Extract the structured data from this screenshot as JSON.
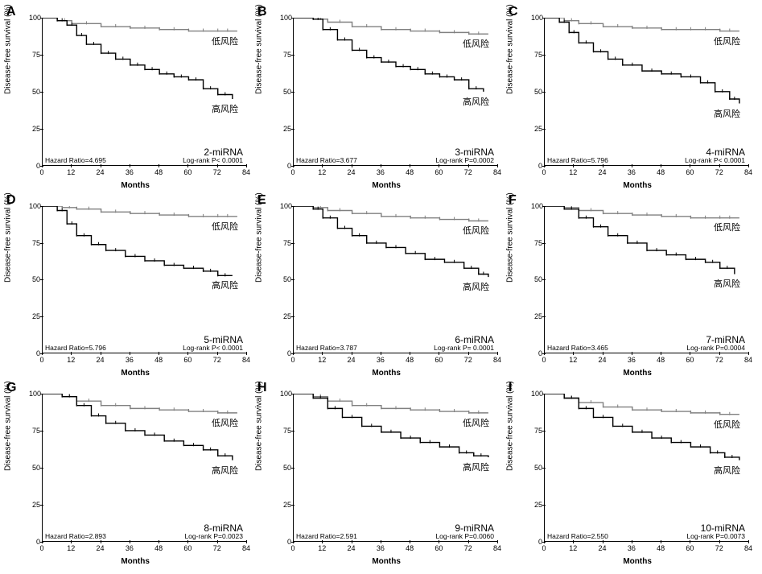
{
  "figure": {
    "grid": {
      "rows": 3,
      "cols": 3
    },
    "background": "#ffffff",
    "yaxis": {
      "label": "Disease-free survival (%)",
      "min": 0,
      "max": 100,
      "ticks": [
        0,
        25,
        50,
        75,
        100
      ]
    },
    "xaxis": {
      "label": "Months",
      "min": 0,
      "max": 84,
      "ticks": [
        0,
        12,
        24,
        36,
        48,
        60,
        72,
        84
      ]
    },
    "line_color": "#000000",
    "low_risk_color": "#808080",
    "high_risk_color": "#000000",
    "line_width": 1.4,
    "censor_marker": "|",
    "annot_low": "低风险",
    "annot_high": "高风险",
    "label_fontsize": 10,
    "tick_fontsize": 9
  },
  "panels": [
    {
      "letter": "A",
      "mirna": "2-miRNA",
      "hazard": "Hazard Ratio=4.695",
      "logrank": "Log-rank P< 0.0001",
      "low": [
        [
          0,
          100
        ],
        [
          6,
          98
        ],
        [
          12,
          96
        ],
        [
          24,
          94
        ],
        [
          36,
          93
        ],
        [
          48,
          92
        ],
        [
          60,
          91
        ],
        [
          72,
          91
        ],
        [
          80,
          91
        ]
      ],
      "high": [
        [
          0,
          100
        ],
        [
          6,
          98
        ],
        [
          10,
          95
        ],
        [
          14,
          88
        ],
        [
          18,
          82
        ],
        [
          24,
          76
        ],
        [
          30,
          72
        ],
        [
          36,
          68
        ],
        [
          42,
          65
        ],
        [
          48,
          62
        ],
        [
          54,
          60
        ],
        [
          60,
          58
        ],
        [
          66,
          52
        ],
        [
          72,
          48
        ],
        [
          78,
          45
        ]
      ]
    },
    {
      "letter": "B",
      "mirna": "3-miRNA",
      "hazard": "Hazard Ratio=3.677",
      "logrank": "Log-rank P=0.0002",
      "low": [
        [
          0,
          100
        ],
        [
          8,
          99
        ],
        [
          14,
          97
        ],
        [
          24,
          94
        ],
        [
          36,
          92
        ],
        [
          48,
          91
        ],
        [
          60,
          90
        ],
        [
          72,
          89
        ],
        [
          80,
          89
        ]
      ],
      "high": [
        [
          0,
          100
        ],
        [
          8,
          99
        ],
        [
          12,
          92
        ],
        [
          18,
          85
        ],
        [
          24,
          78
        ],
        [
          30,
          73
        ],
        [
          36,
          70
        ],
        [
          42,
          67
        ],
        [
          48,
          65
        ],
        [
          54,
          62
        ],
        [
          60,
          60
        ],
        [
          66,
          58
        ],
        [
          72,
          52
        ],
        [
          78,
          50
        ]
      ]
    },
    {
      "letter": "C",
      "mirna": "4-miRNA",
      "hazard": "Hazard Ratio=5.796",
      "logrank": "Log-rank P< 0.0001",
      "low": [
        [
          0,
          100
        ],
        [
          8,
          98
        ],
        [
          14,
          96
        ],
        [
          24,
          94
        ],
        [
          36,
          93
        ],
        [
          48,
          92
        ],
        [
          60,
          92
        ],
        [
          72,
          91
        ],
        [
          80,
          91
        ]
      ],
      "high": [
        [
          0,
          100
        ],
        [
          6,
          97
        ],
        [
          10,
          90
        ],
        [
          14,
          83
        ],
        [
          20,
          77
        ],
        [
          26,
          72
        ],
        [
          32,
          68
        ],
        [
          40,
          64
        ],
        [
          48,
          62
        ],
        [
          56,
          60
        ],
        [
          64,
          56
        ],
        [
          70,
          50
        ],
        [
          76,
          45
        ],
        [
          80,
          42
        ]
      ]
    },
    {
      "letter": "D",
      "mirna": "5-miRNA",
      "hazard": "Hazard Ratio=5.796",
      "logrank": "Log-rank P< 0.0001",
      "low": [
        [
          0,
          100
        ],
        [
          8,
          99
        ],
        [
          14,
          98
        ],
        [
          24,
          96
        ],
        [
          36,
          95
        ],
        [
          48,
          94
        ],
        [
          60,
          93
        ],
        [
          72,
          93
        ],
        [
          80,
          93
        ]
      ],
      "high": [
        [
          0,
          100
        ],
        [
          6,
          97
        ],
        [
          10,
          88
        ],
        [
          14,
          80
        ],
        [
          20,
          74
        ],
        [
          26,
          70
        ],
        [
          34,
          66
        ],
        [
          42,
          63
        ],
        [
          50,
          60
        ],
        [
          58,
          58
        ],
        [
          66,
          56
        ],
        [
          72,
          53
        ],
        [
          78,
          53
        ]
      ]
    },
    {
      "letter": "E",
      "mirna": "6-miRNA",
      "hazard": "Hazard Ratio=3.787",
      "logrank": "Log-rank P= 0.0001",
      "low": [
        [
          0,
          100
        ],
        [
          8,
          99
        ],
        [
          14,
          97
        ],
        [
          24,
          95
        ],
        [
          36,
          93
        ],
        [
          48,
          92
        ],
        [
          60,
          91
        ],
        [
          72,
          90
        ],
        [
          80,
          90
        ]
      ],
      "high": [
        [
          0,
          100
        ],
        [
          8,
          98
        ],
        [
          12,
          92
        ],
        [
          18,
          85
        ],
        [
          24,
          80
        ],
        [
          30,
          75
        ],
        [
          38,
          72
        ],
        [
          46,
          68
        ],
        [
          54,
          64
        ],
        [
          62,
          62
        ],
        [
          70,
          58
        ],
        [
          76,
          54
        ],
        [
          80,
          52
        ]
      ]
    },
    {
      "letter": "F",
      "mirna": "7-miRNA",
      "hazard": "Hazard Ratio=3.465",
      "logrank": "Log-rank P=0.0004",
      "low": [
        [
          0,
          100
        ],
        [
          8,
          99
        ],
        [
          14,
          97
        ],
        [
          24,
          95
        ],
        [
          36,
          94
        ],
        [
          48,
          93
        ],
        [
          60,
          92
        ],
        [
          72,
          92
        ],
        [
          80,
          92
        ]
      ],
      "high": [
        [
          0,
          100
        ],
        [
          8,
          98
        ],
        [
          14,
          92
        ],
        [
          20,
          86
        ],
        [
          26,
          80
        ],
        [
          34,
          75
        ],
        [
          42,
          70
        ],
        [
          50,
          67
        ],
        [
          58,
          64
        ],
        [
          66,
          62
        ],
        [
          72,
          58
        ],
        [
          78,
          54
        ]
      ]
    },
    {
      "letter": "G",
      "mirna": "8-miRNA",
      "hazard": "Hazard Ratio=2.893",
      "logrank": "Log-rank P=0.0023",
      "low": [
        [
          0,
          100
        ],
        [
          8,
          98
        ],
        [
          14,
          95
        ],
        [
          24,
          92
        ],
        [
          36,
          90
        ],
        [
          48,
          89
        ],
        [
          60,
          88
        ],
        [
          72,
          87
        ],
        [
          80,
          87
        ]
      ],
      "high": [
        [
          0,
          100
        ],
        [
          8,
          98
        ],
        [
          14,
          92
        ],
        [
          20,
          85
        ],
        [
          26,
          80
        ],
        [
          34,
          75
        ],
        [
          42,
          72
        ],
        [
          50,
          68
        ],
        [
          58,
          65
        ],
        [
          66,
          62
        ],
        [
          72,
          58
        ],
        [
          78,
          55
        ]
      ]
    },
    {
      "letter": "H",
      "mirna": "9-miRNA",
      "hazard": "Hazard Ratio=2.591",
      "logrank": "Log-rank P=0.0060",
      "low": [
        [
          0,
          100
        ],
        [
          8,
          98
        ],
        [
          14,
          95
        ],
        [
          24,
          92
        ],
        [
          36,
          90
        ],
        [
          48,
          89
        ],
        [
          60,
          88
        ],
        [
          72,
          87
        ],
        [
          80,
          87
        ]
      ],
      "high": [
        [
          0,
          100
        ],
        [
          8,
          97
        ],
        [
          14,
          90
        ],
        [
          20,
          84
        ],
        [
          28,
          78
        ],
        [
          36,
          74
        ],
        [
          44,
          70
        ],
        [
          52,
          67
        ],
        [
          60,
          64
        ],
        [
          68,
          60
        ],
        [
          74,
          58
        ],
        [
          80,
          57
        ]
      ]
    },
    {
      "letter": "I",
      "mirna": "10-miRNA",
      "hazard": "Hazard Ratio=2.550",
      "logrank": "Log-rank P=0.0073",
      "low": [
        [
          0,
          100
        ],
        [
          8,
          97
        ],
        [
          14,
          94
        ],
        [
          24,
          91
        ],
        [
          36,
          89
        ],
        [
          48,
          88
        ],
        [
          60,
          87
        ],
        [
          72,
          86
        ],
        [
          80,
          86
        ]
      ],
      "high": [
        [
          0,
          100
        ],
        [
          8,
          97
        ],
        [
          14,
          90
        ],
        [
          20,
          84
        ],
        [
          28,
          78
        ],
        [
          36,
          74
        ],
        [
          44,
          70
        ],
        [
          52,
          67
        ],
        [
          60,
          64
        ],
        [
          68,
          60
        ],
        [
          74,
          57
        ],
        [
          80,
          55
        ]
      ]
    }
  ]
}
